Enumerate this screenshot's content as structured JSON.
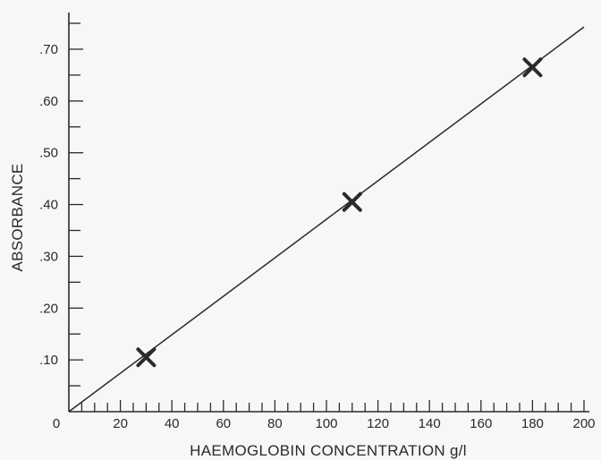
{
  "chart_data": {
    "type": "scatter",
    "title": "",
    "xlabel": "HAEMOGLOBIN CONCENTRATION g/l",
    "ylabel": "ABSORBANCE",
    "xlim": [
      0,
      200
    ],
    "ylim": [
      0,
      0.75
    ],
    "x_ticks": [
      "0",
      "20",
      "40",
      "60",
      "80",
      "100",
      "120",
      "140",
      "160",
      "180",
      "200"
    ],
    "x_tick_values": [
      0,
      20,
      40,
      60,
      80,
      100,
      120,
      140,
      160,
      180,
      200
    ],
    "y_ticks": [
      ".10",
      ".20",
      ".30",
      ".40",
      ".50",
      ".60",
      ".70"
    ],
    "y_tick_values": [
      0.1,
      0.2,
      0.3,
      0.4,
      0.5,
      0.6,
      0.7
    ],
    "x_minor_step": 5,
    "y_minor_step": 0.05,
    "grid": false,
    "points": [
      {
        "x": 30,
        "y": 0.105
      },
      {
        "x": 110,
        "y": 0.405
      },
      {
        "x": 180,
        "y": 0.665
      }
    ],
    "fit_line": {
      "x": [
        0,
        200
      ],
      "y": [
        0,
        0.743
      ]
    },
    "marker": "cross",
    "color": "#2a2a2a"
  }
}
